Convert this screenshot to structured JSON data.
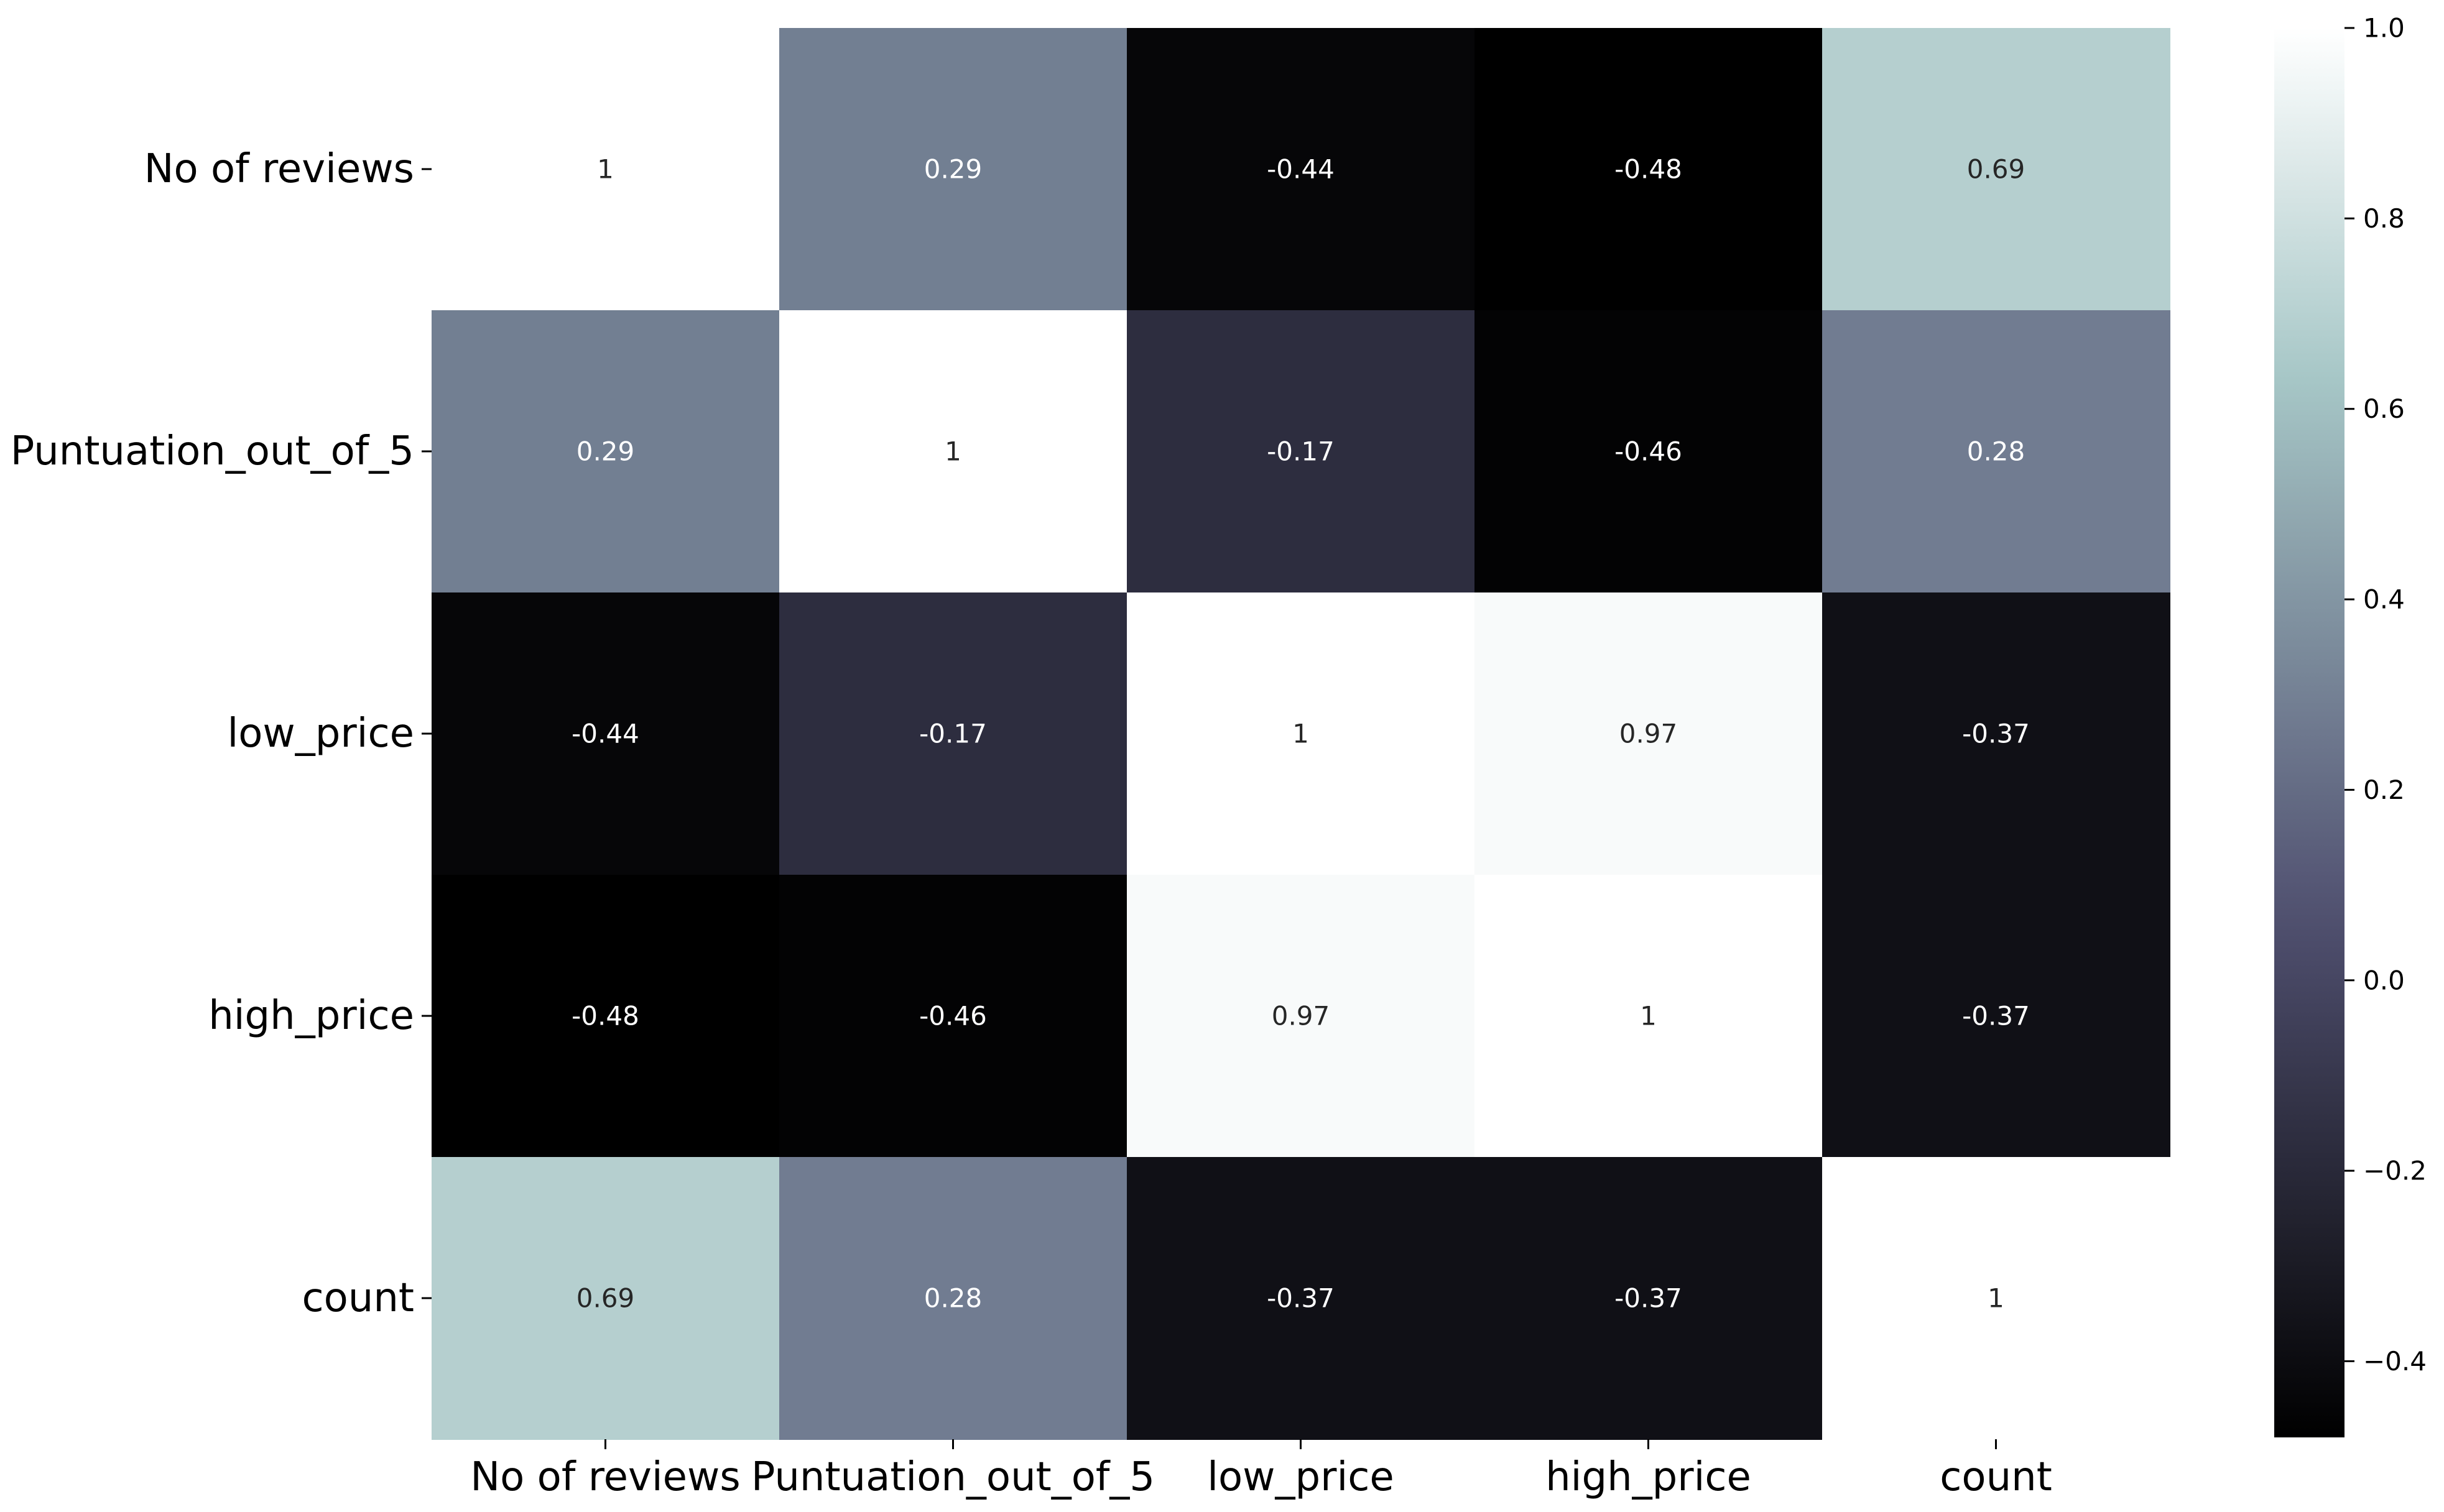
{
  "chart_data": {
    "type": "heatmap",
    "title": "",
    "xlabel": "",
    "ylabel": "",
    "x_categories": [
      "No of reviews",
      "Puntuation_out_of_5",
      "low_price",
      "high_price",
      "count"
    ],
    "y_categories": [
      "No of reviews",
      "Puntuation_out_of_5",
      "low_price",
      "high_price",
      "count"
    ],
    "values": [
      [
        1,
        0.29,
        -0.44,
        -0.48,
        0.69
      ],
      [
        0.29,
        1,
        -0.17,
        -0.46,
        0.28
      ],
      [
        -0.44,
        -0.17,
        1,
        0.97,
        -0.37
      ],
      [
        -0.48,
        -0.46,
        0.97,
        1,
        -0.37
      ],
      [
        0.69,
        0.28,
        -0.37,
        -0.37,
        1
      ]
    ],
    "annotations": [
      [
        "1",
        "0.29",
        "-0.44",
        "-0.48",
        "0.69"
      ],
      [
        "0.29",
        "1",
        "-0.17",
        "-0.46",
        "0.28"
      ],
      [
        "-0.44",
        "-0.17",
        "1",
        "0.97",
        "-0.37"
      ],
      [
        "-0.48",
        "-0.46",
        "0.97",
        "1",
        "-0.37"
      ],
      [
        "0.69",
        "0.28",
        "-0.37",
        "-0.37",
        "1"
      ]
    ],
    "colormap": "bone",
    "colorbar": {
      "vmin": -0.48,
      "vmax": 1.0,
      "ticks": [
        1.0,
        0.8,
        0.6,
        0.4,
        0.2,
        0.0,
        -0.2,
        -0.4
      ],
      "tick_labels": [
        "1.0",
        "0.8",
        "0.6",
        "0.4",
        "0.2",
        "0.0",
        "−0.2",
        "−0.4"
      ]
    },
    "grid": false,
    "legend": "colorbar-right"
  }
}
